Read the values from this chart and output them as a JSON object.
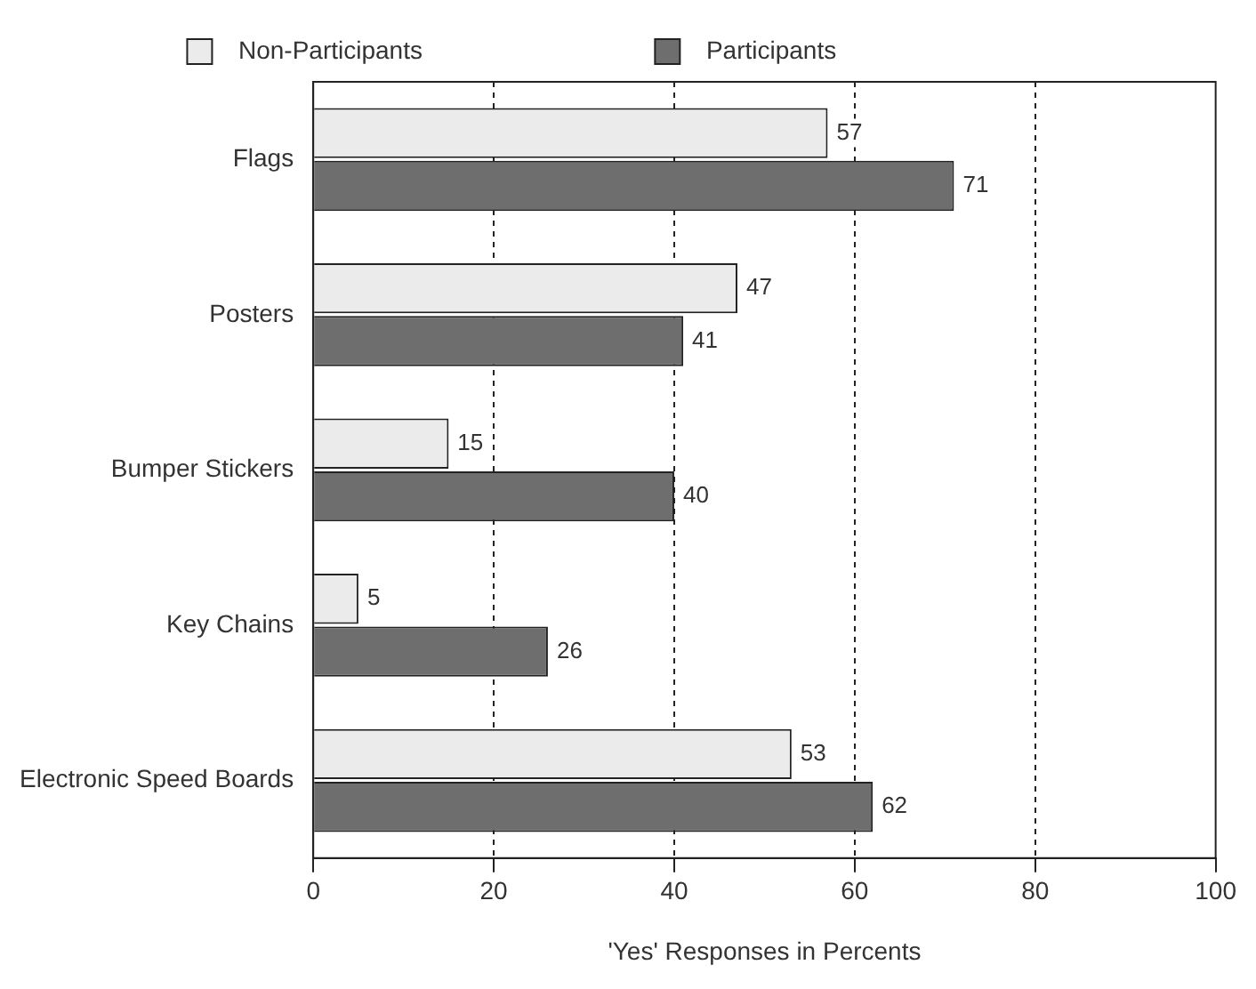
{
  "chart_data": {
    "type": "bar",
    "orientation": "horizontal",
    "xlabel": "'Yes' Responses in Percents",
    "categories": [
      "Flags",
      "Posters",
      "Bumper Stickers",
      "Key Chains",
      "Electronic Speed Boards"
    ],
    "series": [
      {
        "name": "Non-Participants",
        "color": "#ebebeb",
        "values": [
          57,
          47,
          15,
          5,
          53
        ]
      },
      {
        "name": "Participants",
        "color": "#6e6e6e",
        "values": [
          71,
          41,
          40,
          26,
          62
        ]
      }
    ],
    "xlim": [
      0,
      100
    ],
    "xticks": [
      0,
      20,
      40,
      60,
      80,
      100
    ],
    "grid": "x",
    "legend": "top",
    "data_labels": true
  }
}
